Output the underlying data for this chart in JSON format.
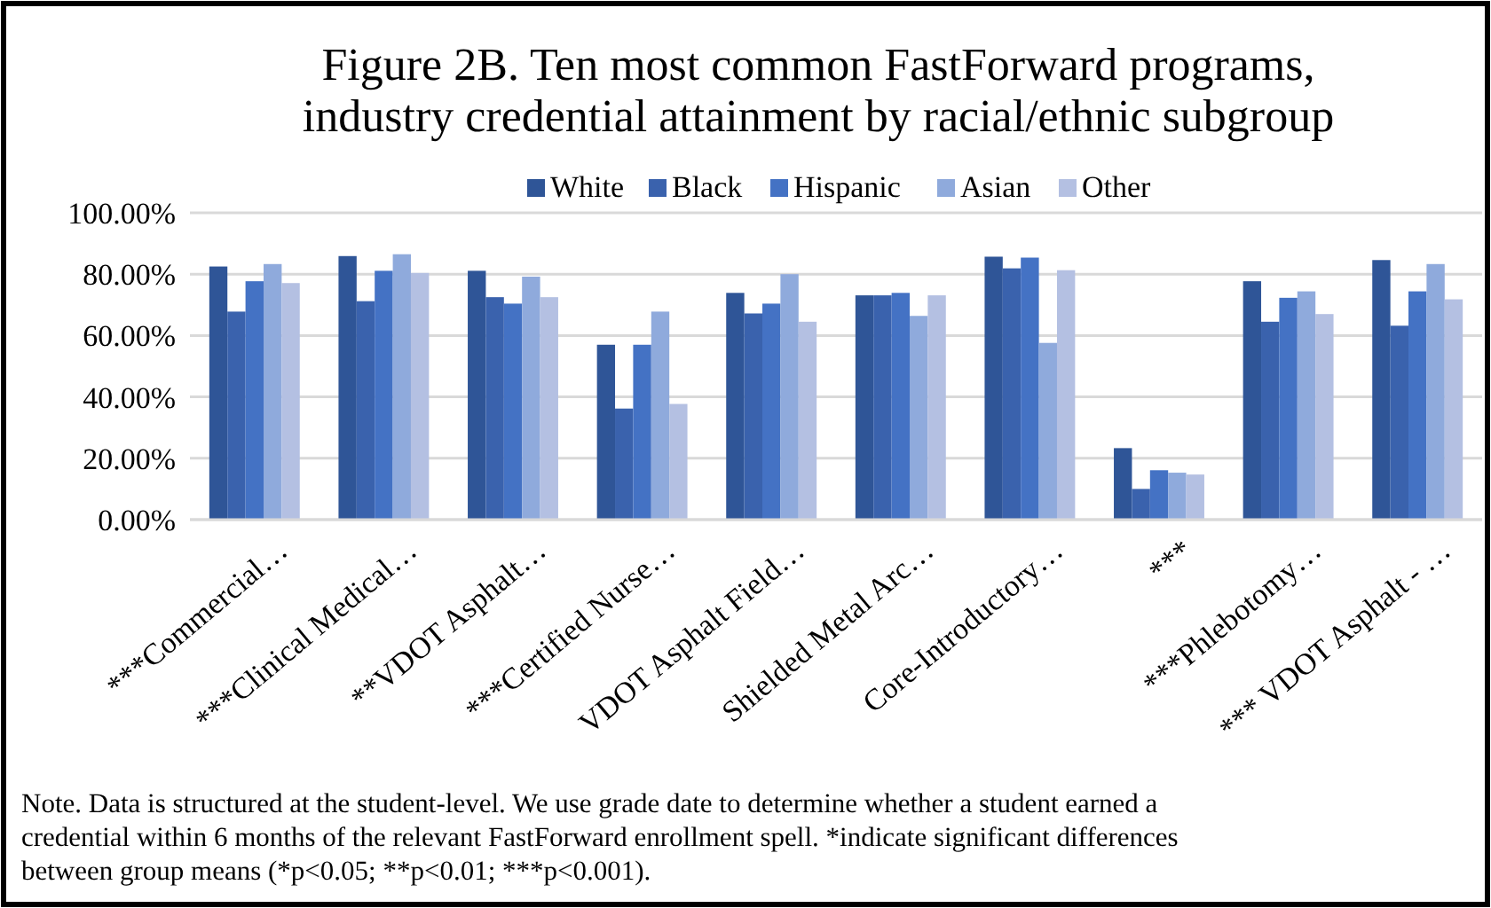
{
  "chart_data": {
    "type": "bar",
    "title": "Figure 2B. Ten most common FastForward programs,\nindustry credential attainment by racial/ethnic subgroup",
    "categories": [
      "***Commercial…",
      "***Clinical Medical…",
      "**VDOT Asphalt…",
      "***Certified Nurse…",
      "VDOT Asphalt Field…",
      "Shielded Metal Arc…",
      "Core-Introductory…",
      "***",
      "***Phlebotomy…",
      "*** VDOT Asphalt - …"
    ],
    "series": [
      {
        "name": "White",
        "color": "#2f5597",
        "values": [
          82.5,
          85.9,
          81.1,
          57.0,
          73.9,
          73.1,
          85.7,
          23.3,
          77.7,
          84.6
        ]
      },
      {
        "name": "Black",
        "color": "#3a62ad",
        "values": [
          67.8,
          71.2,
          72.5,
          36.2,
          67.2,
          73.1,
          81.9,
          10.0,
          64.5,
          63.2
        ]
      },
      {
        "name": "Hispanic",
        "color": "#4472c4",
        "values": [
          77.7,
          81.1,
          70.4,
          57.0,
          70.4,
          73.9,
          85.4,
          16.1,
          72.3,
          74.4
        ]
      },
      {
        "name": "Asian",
        "color": "#8faadc",
        "values": [
          83.3,
          86.5,
          79.2,
          67.8,
          80.0,
          66.4,
          57.6,
          15.3,
          74.4,
          83.3
        ]
      },
      {
        "name": "Other",
        "color": "#b4c0e2",
        "values": [
          77.1,
          80.4,
          72.5,
          37.7,
          64.5,
          73.1,
          81.3,
          14.7,
          67.0,
          71.8
        ]
      }
    ],
    "ylim": [
      0,
      100
    ],
    "yticks": [
      {
        "value": 0,
        "label": "0.00%"
      },
      {
        "value": 20,
        "label": "20.00%"
      },
      {
        "value": 40,
        "label": "40.00%"
      },
      {
        "value": 60,
        "label": "60.00%"
      },
      {
        "value": 80,
        "label": "80.00%"
      },
      {
        "value": 100,
        "label": "100.00%"
      }
    ],
    "grid": "y",
    "legend": "top",
    "annotations": [
      "Note. Data is structured at the student-level. We use grade date to determine whether a student earned a credential within 6 months of the relevant FastForward enrollment spell. *indicate significant differences between group means (*p<0.05; **p<0.01; ***p<0.001)."
    ]
  }
}
